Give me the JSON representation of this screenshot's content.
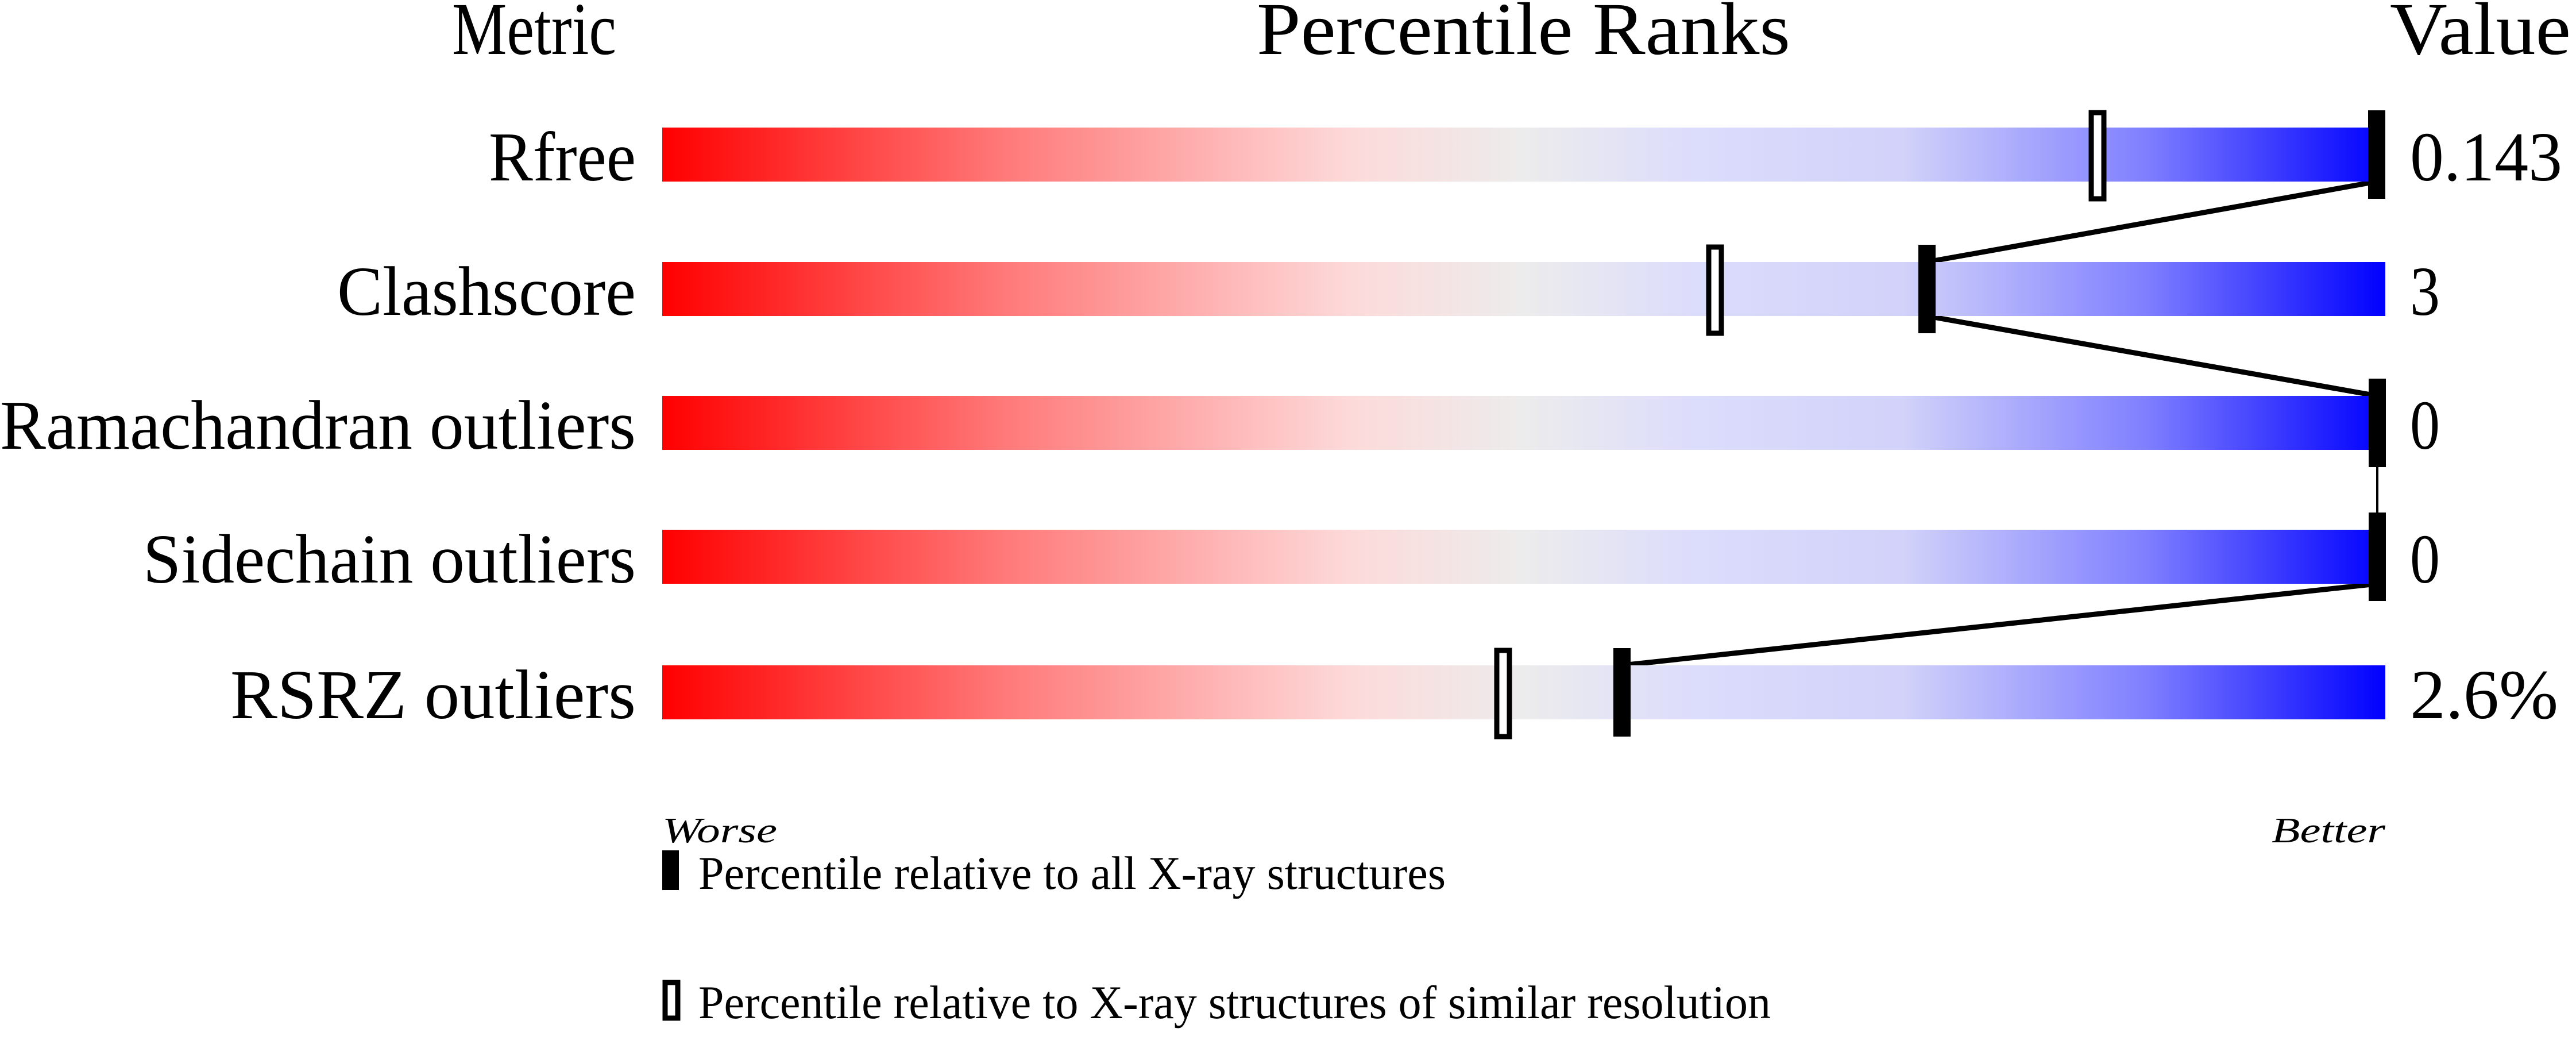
{
  "chart_data": {
    "type": "bar",
    "title": "",
    "headers": {
      "metric": "Metric",
      "percentile": "Percentile Ranks",
      "value": "Value"
    },
    "axis_ends": {
      "left": "Worse",
      "right": "Better"
    },
    "xlim": [
      0,
      100
    ],
    "gradient_colors": [
      "#ff0000",
      "#ff7a7a",
      "#fddada",
      "#ececec",
      "#dcdcfc",
      "#d2d2fa",
      "#8080ff",
      "#0000ff"
    ],
    "metrics": [
      {
        "label": "Rfree",
        "value": "0.143",
        "percentile_all": 99.5,
        "percentile_similar": 83.4
      },
      {
        "label": "Clashscore",
        "value": "3",
        "percentile_all": 73.4,
        "percentile_similar": 61.2
      },
      {
        "label": "Ramachandran outliers",
        "value": "0",
        "percentile_all": 100,
        "percentile_similar": null
      },
      {
        "label": "Sidechain outliers",
        "value": "0",
        "percentile_all": 100,
        "percentile_similar": null
      },
      {
        "label": "RSRZ outliers",
        "value": "2.6%",
        "percentile_all": 55.7,
        "percentile_similar": 48.9
      }
    ],
    "legend": [
      {
        "marker": "filled",
        "label": "Percentile relative to all X-ray structures"
      },
      {
        "marker": "hollow",
        "label": "Percentile relative to X-ray structures of similar resolution"
      }
    ]
  }
}
